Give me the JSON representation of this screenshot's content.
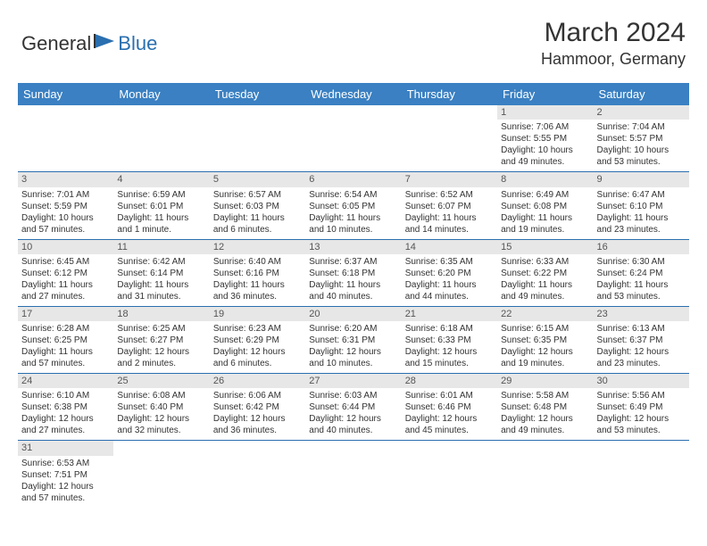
{
  "brand": {
    "first": "General",
    "second": "Blue"
  },
  "title": {
    "month_year": "March 2024",
    "location": "Hammoor, Germany"
  },
  "colors": {
    "header_bg": "#3a80c2",
    "header_text": "#ffffff",
    "rule": "#2a6faf",
    "daynum_bg": "#e7e7e7",
    "brand_blue": "#2a6faf"
  },
  "day_headers": [
    "Sunday",
    "Monday",
    "Tuesday",
    "Wednesday",
    "Thursday",
    "Friday",
    "Saturday"
  ],
  "weeks": [
    [
      {
        "day": "",
        "sunrise": "",
        "sunset": "",
        "day1": "",
        "day2": ""
      },
      {
        "day": "",
        "sunrise": "",
        "sunset": "",
        "day1": "",
        "day2": ""
      },
      {
        "day": "",
        "sunrise": "",
        "sunset": "",
        "day1": "",
        "day2": ""
      },
      {
        "day": "",
        "sunrise": "",
        "sunset": "",
        "day1": "",
        "day2": ""
      },
      {
        "day": "",
        "sunrise": "",
        "sunset": "",
        "day1": "",
        "day2": ""
      },
      {
        "day": "1",
        "sunrise": "Sunrise: 7:06 AM",
        "sunset": "Sunset: 5:55 PM",
        "day1": "Daylight: 10 hours",
        "day2": "and 49 minutes."
      },
      {
        "day": "2",
        "sunrise": "Sunrise: 7:04 AM",
        "sunset": "Sunset: 5:57 PM",
        "day1": "Daylight: 10 hours",
        "day2": "and 53 minutes."
      }
    ],
    [
      {
        "day": "3",
        "sunrise": "Sunrise: 7:01 AM",
        "sunset": "Sunset: 5:59 PM",
        "day1": "Daylight: 10 hours",
        "day2": "and 57 minutes."
      },
      {
        "day": "4",
        "sunrise": "Sunrise: 6:59 AM",
        "sunset": "Sunset: 6:01 PM",
        "day1": "Daylight: 11 hours",
        "day2": "and 1 minute."
      },
      {
        "day": "5",
        "sunrise": "Sunrise: 6:57 AM",
        "sunset": "Sunset: 6:03 PM",
        "day1": "Daylight: 11 hours",
        "day2": "and 6 minutes."
      },
      {
        "day": "6",
        "sunrise": "Sunrise: 6:54 AM",
        "sunset": "Sunset: 6:05 PM",
        "day1": "Daylight: 11 hours",
        "day2": "and 10 minutes."
      },
      {
        "day": "7",
        "sunrise": "Sunrise: 6:52 AM",
        "sunset": "Sunset: 6:07 PM",
        "day1": "Daylight: 11 hours",
        "day2": "and 14 minutes."
      },
      {
        "day": "8",
        "sunrise": "Sunrise: 6:49 AM",
        "sunset": "Sunset: 6:08 PM",
        "day1": "Daylight: 11 hours",
        "day2": "and 19 minutes."
      },
      {
        "day": "9",
        "sunrise": "Sunrise: 6:47 AM",
        "sunset": "Sunset: 6:10 PM",
        "day1": "Daylight: 11 hours",
        "day2": "and 23 minutes."
      }
    ],
    [
      {
        "day": "10",
        "sunrise": "Sunrise: 6:45 AM",
        "sunset": "Sunset: 6:12 PM",
        "day1": "Daylight: 11 hours",
        "day2": "and 27 minutes."
      },
      {
        "day": "11",
        "sunrise": "Sunrise: 6:42 AM",
        "sunset": "Sunset: 6:14 PM",
        "day1": "Daylight: 11 hours",
        "day2": "and 31 minutes."
      },
      {
        "day": "12",
        "sunrise": "Sunrise: 6:40 AM",
        "sunset": "Sunset: 6:16 PM",
        "day1": "Daylight: 11 hours",
        "day2": "and 36 minutes."
      },
      {
        "day": "13",
        "sunrise": "Sunrise: 6:37 AM",
        "sunset": "Sunset: 6:18 PM",
        "day1": "Daylight: 11 hours",
        "day2": "and 40 minutes."
      },
      {
        "day": "14",
        "sunrise": "Sunrise: 6:35 AM",
        "sunset": "Sunset: 6:20 PM",
        "day1": "Daylight: 11 hours",
        "day2": "and 44 minutes."
      },
      {
        "day": "15",
        "sunrise": "Sunrise: 6:33 AM",
        "sunset": "Sunset: 6:22 PM",
        "day1": "Daylight: 11 hours",
        "day2": "and 49 minutes."
      },
      {
        "day": "16",
        "sunrise": "Sunrise: 6:30 AM",
        "sunset": "Sunset: 6:24 PM",
        "day1": "Daylight: 11 hours",
        "day2": "and 53 minutes."
      }
    ],
    [
      {
        "day": "17",
        "sunrise": "Sunrise: 6:28 AM",
        "sunset": "Sunset: 6:25 PM",
        "day1": "Daylight: 11 hours",
        "day2": "and 57 minutes."
      },
      {
        "day": "18",
        "sunrise": "Sunrise: 6:25 AM",
        "sunset": "Sunset: 6:27 PM",
        "day1": "Daylight: 12 hours",
        "day2": "and 2 minutes."
      },
      {
        "day": "19",
        "sunrise": "Sunrise: 6:23 AM",
        "sunset": "Sunset: 6:29 PM",
        "day1": "Daylight: 12 hours",
        "day2": "and 6 minutes."
      },
      {
        "day": "20",
        "sunrise": "Sunrise: 6:20 AM",
        "sunset": "Sunset: 6:31 PM",
        "day1": "Daylight: 12 hours",
        "day2": "and 10 minutes."
      },
      {
        "day": "21",
        "sunrise": "Sunrise: 6:18 AM",
        "sunset": "Sunset: 6:33 PM",
        "day1": "Daylight: 12 hours",
        "day2": "and 15 minutes."
      },
      {
        "day": "22",
        "sunrise": "Sunrise: 6:15 AM",
        "sunset": "Sunset: 6:35 PM",
        "day1": "Daylight: 12 hours",
        "day2": "and 19 minutes."
      },
      {
        "day": "23",
        "sunrise": "Sunrise: 6:13 AM",
        "sunset": "Sunset: 6:37 PM",
        "day1": "Daylight: 12 hours",
        "day2": "and 23 minutes."
      }
    ],
    [
      {
        "day": "24",
        "sunrise": "Sunrise: 6:10 AM",
        "sunset": "Sunset: 6:38 PM",
        "day1": "Daylight: 12 hours",
        "day2": "and 27 minutes."
      },
      {
        "day": "25",
        "sunrise": "Sunrise: 6:08 AM",
        "sunset": "Sunset: 6:40 PM",
        "day1": "Daylight: 12 hours",
        "day2": "and 32 minutes."
      },
      {
        "day": "26",
        "sunrise": "Sunrise: 6:06 AM",
        "sunset": "Sunset: 6:42 PM",
        "day1": "Daylight: 12 hours",
        "day2": "and 36 minutes."
      },
      {
        "day": "27",
        "sunrise": "Sunrise: 6:03 AM",
        "sunset": "Sunset: 6:44 PM",
        "day1": "Daylight: 12 hours",
        "day2": "and 40 minutes."
      },
      {
        "day": "28",
        "sunrise": "Sunrise: 6:01 AM",
        "sunset": "Sunset: 6:46 PM",
        "day1": "Daylight: 12 hours",
        "day2": "and 45 minutes."
      },
      {
        "day": "29",
        "sunrise": "Sunrise: 5:58 AM",
        "sunset": "Sunset: 6:48 PM",
        "day1": "Daylight: 12 hours",
        "day2": "and 49 minutes."
      },
      {
        "day": "30",
        "sunrise": "Sunrise: 5:56 AM",
        "sunset": "Sunset: 6:49 PM",
        "day1": "Daylight: 12 hours",
        "day2": "and 53 minutes."
      }
    ],
    [
      {
        "day": "31",
        "sunrise": "Sunrise: 6:53 AM",
        "sunset": "Sunset: 7:51 PM",
        "day1": "Daylight: 12 hours",
        "day2": "and 57 minutes."
      },
      {
        "day": "",
        "sunrise": "",
        "sunset": "",
        "day1": "",
        "day2": ""
      },
      {
        "day": "",
        "sunrise": "",
        "sunset": "",
        "day1": "",
        "day2": ""
      },
      {
        "day": "",
        "sunrise": "",
        "sunset": "",
        "day1": "",
        "day2": ""
      },
      {
        "day": "",
        "sunrise": "",
        "sunset": "",
        "day1": "",
        "day2": ""
      },
      {
        "day": "",
        "sunrise": "",
        "sunset": "",
        "day1": "",
        "day2": ""
      },
      {
        "day": "",
        "sunrise": "",
        "sunset": "",
        "day1": "",
        "day2": ""
      }
    ]
  ]
}
